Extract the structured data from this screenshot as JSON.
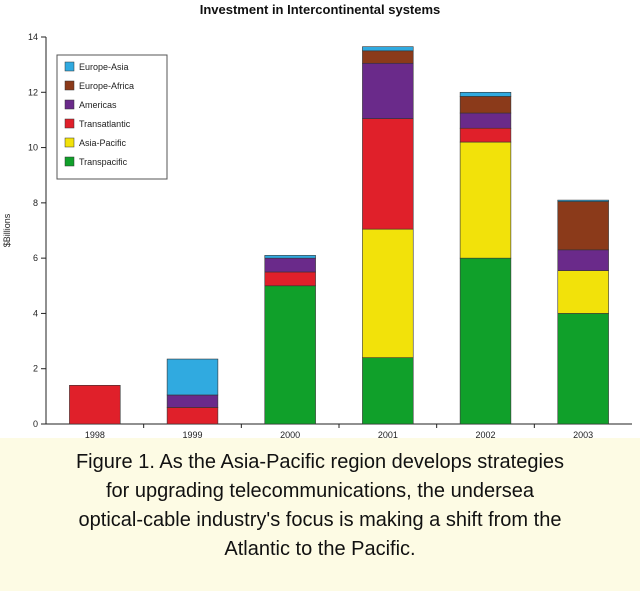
{
  "chart_data": {
    "type": "bar",
    "stacked": true,
    "title": "Investment in Intercontinental systems",
    "ylabel": "$Billions",
    "xlabel": "",
    "ylim": [
      0,
      14
    ],
    "yticks": [
      0,
      2,
      4,
      6,
      8,
      10,
      12,
      14
    ],
    "categories": [
      "1998",
      "1999",
      "2000",
      "2001",
      "2002",
      "2003"
    ],
    "legend_position": "top-left",
    "grid": false,
    "series": [
      {
        "name": "Transpacific",
        "color": "#10a02a",
        "values": [
          0,
          0,
          5.0,
          2.4,
          6.0,
          4.0
        ]
      },
      {
        "name": "Asia-Pacific",
        "color": "#f2e20a",
        "values": [
          0,
          0,
          0,
          4.65,
          4.2,
          1.55
        ]
      },
      {
        "name": "Transatlantic",
        "color": "#e0202a",
        "values": [
          1.4,
          0.6,
          0.5,
          4.0,
          0.5,
          0
        ]
      },
      {
        "name": "Americas",
        "color": "#6a2a8a",
        "values": [
          0,
          0.45,
          0.5,
          2.0,
          0.55,
          0.75
        ]
      },
      {
        "name": "Europe-Africa",
        "color": "#8b3a1a",
        "values": [
          0,
          0,
          0,
          0.45,
          0.6,
          1.75
        ]
      },
      {
        "name": "Europe-Asia",
        "color": "#30aae0",
        "values": [
          0,
          1.3,
          0.1,
          0.15,
          0.15,
          0.05
        ]
      }
    ],
    "legend_order": [
      "Europe-Asia",
      "Europe-Africa",
      "Americas",
      "Transatlantic",
      "Asia-Pacific",
      "Transpacific"
    ]
  },
  "caption": {
    "lines": [
      "Figure 1. As the Asia-Pacific region develops strategies",
      "for upgrading telecommunications, the undersea",
      "optical-cable industry's focus is making a shift from the",
      "Atlantic to the Pacific."
    ]
  }
}
